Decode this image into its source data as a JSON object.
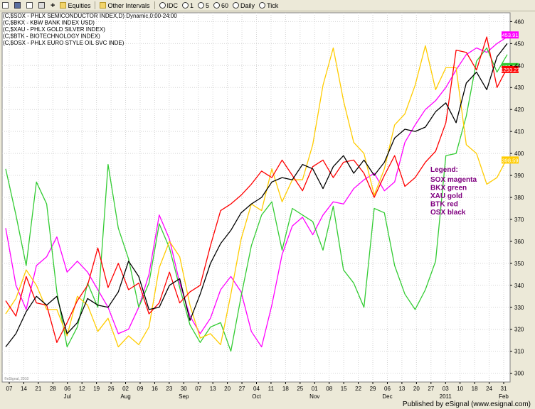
{
  "toolbar": {
    "equities": "Equities",
    "other_intervals": "Other Intervals",
    "idc": "IDC",
    "i1": "1",
    "i5": "5",
    "i60": "60",
    "daily": "Daily",
    "tick": "Tick"
  },
  "chart_data": {
    "type": "line",
    "headers": [
      "(C,$SOX - PHLX SEMICONDUCTOR INDEX,D) Dynamic,0:00-24:00",
      "(C,$BKX - KBW BANK INDEX USD)",
      "(C,$XAU - PHLX GOLD SILVER INDEX)",
      "(C,$BTK - BIOTECHNOLOGY INDEX)",
      "(C,$OSX - PHLX EURO STYLE OIL SVC INDE)"
    ],
    "ylim": [
      296,
      464
    ],
    "yticks": [
      300,
      310,
      320,
      330,
      340,
      350,
      360,
      370,
      380,
      390,
      400,
      410,
      420,
      430,
      440,
      450,
      460
    ],
    "x_day_labels": [
      "07",
      "14",
      "21",
      "28",
      "06",
      "12",
      "19",
      "26",
      "02",
      "09",
      "16",
      "23",
      "30",
      "07",
      "13",
      "20",
      "27",
      "04",
      "11",
      "18",
      "25",
      "01",
      "08",
      "15",
      "22",
      "29",
      "06",
      "13",
      "20",
      "27",
      "03",
      "10",
      "18",
      "24",
      "31"
    ],
    "x_month_labels": [
      "Jul",
      "Aug",
      "Sep",
      "Oct",
      "Nov",
      "Dec",
      "2011",
      "Feb"
    ],
    "x_month_label_index": [
      4,
      8,
      12,
      17,
      21,
      26,
      30,
      34
    ],
    "series": [
      {
        "name": "SOX",
        "color": "#ff00ff",
        "values": [
          366,
          340,
          329,
          349,
          353,
          362,
          346,
          351,
          346,
          338,
          330,
          318,
          320,
          330,
          345,
          372,
          361,
          341,
          326,
          318,
          325,
          338,
          344,
          337,
          319,
          312,
          331,
          354,
          367,
          371,
          363,
          372,
          378,
          377,
          384,
          388,
          391,
          383,
          387,
          405,
          413,
          420,
          424,
          430,
          438,
          445,
          448,
          446,
          450,
          453
        ]
      },
      {
        "name": "BKX",
        "color": "#33cc33",
        "values": [
          393,
          372,
          349,
          387,
          377,
          337,
          312,
          321,
          341,
          330,
          395,
          366,
          352,
          330,
          341,
          368,
          357,
          339,
          322,
          314,
          321,
          323,
          310,
          335,
          358,
          372,
          378,
          356,
          375,
          372,
          369,
          356,
          376,
          347,
          341,
          330,
          375,
          373,
          349,
          336,
          329,
          338,
          351,
          399,
          400,
          417,
          442,
          448,
          437,
          445
        ]
      },
      {
        "name": "XAU",
        "color": "#ffcc00",
        "values": [
          327,
          334,
          347,
          340,
          329,
          329,
          317,
          335,
          331,
          319,
          325,
          312,
          317,
          313,
          321,
          348,
          360,
          353,
          331,
          316,
          318,
          313,
          336,
          361,
          377,
          374,
          393,
          378,
          388,
          388,
          404,
          431,
          448,
          424,
          405,
          400,
          381,
          393,
          413,
          418,
          431,
          449,
          429,
          439,
          439,
          404,
          400,
          386,
          389,
          398
        ]
      },
      {
        "name": "BTK",
        "color": "#ff0000",
        "values": [
          333,
          326,
          344,
          332,
          331,
          314,
          323,
          333,
          340,
          357,
          339,
          350,
          338,
          341,
          327,
          332,
          346,
          332,
          337,
          340,
          358,
          374,
          377,
          381,
          386,
          392,
          389,
          397,
          390,
          383,
          394,
          397,
          389,
          396,
          397,
          391,
          380,
          390,
          399,
          385,
          389,
          396,
          401,
          414,
          447,
          446,
          438,
          453,
          430,
          439
        ]
      },
      {
        "name": "OSX",
        "color": "#000000",
        "values": [
          312,
          318,
          328,
          335,
          331,
          335,
          318,
          323,
          334,
          331,
          330,
          337,
          351,
          344,
          329,
          330,
          340,
          343,
          324,
          336,
          350,
          359,
          365,
          373,
          377,
          380,
          387,
          389,
          388,
          395,
          393,
          384,
          394,
          399,
          391,
          397,
          390,
          396,
          407,
          411,
          410,
          412,
          419,
          423,
          414,
          432,
          437,
          429,
          444,
          450
        ]
      }
    ],
    "last_value_badges": [
      {
        "label": "453.91",
        "value": 453.91,
        "color": "#ff00ff"
      },
      {
        "label": "439.50",
        "value": 439.5,
        "color": "#33cc33"
      },
      {
        "label": "1293.27",
        "value": 438.2,
        "color": "#ff0000"
      },
      {
        "label": "398.59",
        "value": 397.0,
        "color": "#ffcc00"
      }
    ],
    "legend": {
      "title": "Legend:",
      "entries": [
        "SOX magenta",
        "BKX green",
        "XAU gold",
        "BTK red",
        "OSX black"
      ]
    },
    "watermark": "©eSignal, 2010",
    "footer": "Published by eSignal (www.esignal.com)",
    "grid": true
  }
}
